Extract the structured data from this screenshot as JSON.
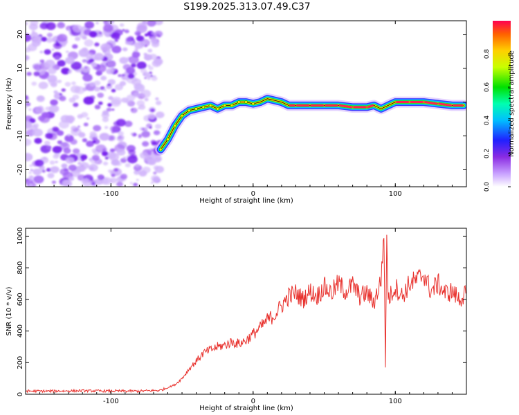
{
  "chart_data": [
    {
      "type": "heatmap",
      "title": "S199.2025.313.07.49.C37",
      "xlabel": "Height of straight line (km)",
      "ylabel": "Frequency (Hz)",
      "xlim": [
        -160,
        150
      ],
      "ylim": [
        -25,
        24
      ],
      "xticks": [
        -100,
        0,
        100
      ],
      "xtick_labels": [
        "-100",
        "0",
        "100"
      ],
      "yticks": [
        -20,
        -10,
        0,
        10,
        20
      ],
      "ytick_labels": [
        "-20",
        "-10",
        "0",
        "10",
        "20"
      ],
      "noise_region_x": [
        -160,
        -65
      ],
      "ridge": {
        "x": [
          -65,
          -60,
          -55,
          -50,
          -45,
          -40,
          -35,
          -30,
          -25,
          -20,
          -15,
          -10,
          -5,
          0,
          5,
          10,
          15,
          20,
          25,
          30,
          40,
          50,
          60,
          70,
          80,
          85,
          90,
          95,
          100,
          110,
          120,
          130,
          140,
          148
        ],
        "y": [
          -14,
          -11,
          -7,
          -4,
          -2.5,
          -2,
          -1.5,
          -1,
          -2,
          -1,
          -1,
          0,
          0,
          -0.5,
          0,
          1,
          0.5,
          0,
          -1,
          -1,
          -1,
          -1,
          -1,
          -1.5,
          -1.5,
          -1,
          -2,
          -1,
          0,
          0,
          0,
          -0.5,
          -1,
          -1
        ]
      },
      "colorbar": {
        "label": "Normalized spectral amplitude",
        "ticks": [
          0.0,
          0.2,
          0.4,
          0.6,
          0.8
        ],
        "tick_labels": [
          "0.0",
          "0.2",
          "0.4",
          "0.6",
          "0.8"
        ],
        "range": [
          0,
          1
        ]
      }
    },
    {
      "type": "line",
      "xlabel": "Height of straight line (km)",
      "ylabel": "SNR (10 * v/v)",
      "xlim": [
        -160,
        150
      ],
      "ylim": [
        0,
        1050
      ],
      "xticks": [
        -100,
        0,
        100
      ],
      "xtick_labels": [
        "-100",
        "0",
        "100"
      ],
      "yticks": [
        0,
        200,
        400,
        600,
        800,
        1000
      ],
      "ytick_labels": [
        "0",
        "200",
        "400",
        "600",
        "800",
        "1000"
      ],
      "series": [
        {
          "name": "SNR",
          "color": "#e8302c",
          "x": [
            -160,
            -140,
            -120,
            -100,
            -80,
            -65,
            -55,
            -50,
            -45,
            -40,
            -35,
            -30,
            -25,
            -20,
            -15,
            -10,
            -5,
            0,
            5,
            10,
            15,
            20,
            25,
            30,
            35,
            40,
            45,
            50,
            55,
            60,
            65,
            70,
            75,
            80,
            85,
            90,
            92,
            93,
            94,
            95,
            100,
            105,
            110,
            115,
            120,
            125,
            130,
            135,
            140,
            145,
            150
          ],
          "y": [
            20,
            20,
            22,
            20,
            20,
            25,
            60,
            100,
            160,
            210,
            260,
            280,
            300,
            310,
            330,
            320,
            340,
            380,
            420,
            470,
            500,
            560,
            620,
            640,
            600,
            650,
            620,
            680,
            640,
            700,
            650,
            690,
            620,
            640,
            580,
            720,
            1040,
            170,
            1000,
            600,
            680,
            620,
            700,
            720,
            760,
            650,
            700,
            640,
            650,
            600,
            640
          ]
        }
      ]
    }
  ],
  "colors": {
    "axis": "#000000",
    "line": "#e8302c",
    "noise": "#8a3cf0"
  }
}
